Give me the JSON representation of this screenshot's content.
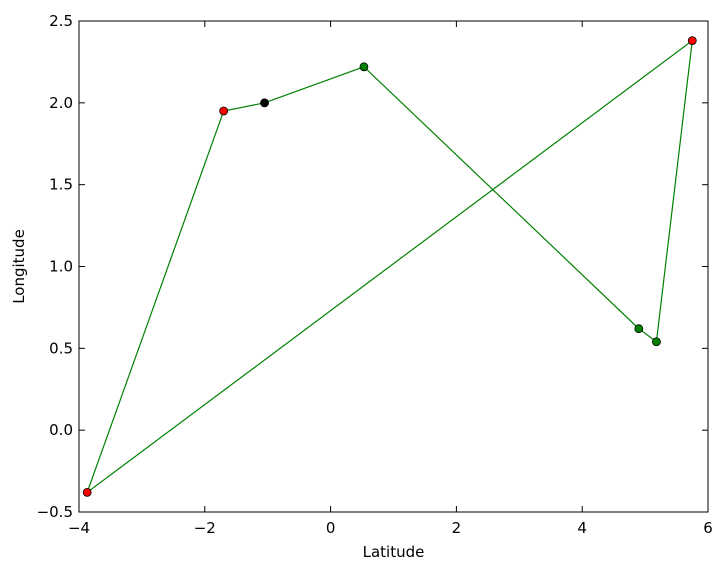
{
  "chart_data": {
    "type": "line",
    "xlabel": "Latitude",
    "ylabel": "Longitude",
    "xlim": [
      -4,
      6
    ],
    "ylim": [
      -0.5,
      2.5
    ],
    "xticks": [
      -4,
      -2,
      0,
      2,
      4,
      6
    ],
    "xtick_labels": [
      "−4",
      "−2",
      "0",
      "2",
      "4",
      "6"
    ],
    "yticks": [
      -0.5,
      0.0,
      0.5,
      1.0,
      1.5,
      2.0,
      2.5
    ],
    "ytick_labels": [
      "−0.5",
      "0.0",
      "0.5",
      "1.0",
      "1.5",
      "2.0",
      "2.5"
    ],
    "grid": false,
    "line_color": "#008000",
    "path": [
      {
        "x": -1.05,
        "y": 2.0
      },
      {
        "x": 0.53,
        "y": 2.22
      },
      {
        "x": 4.9,
        "y": 0.62
      },
      {
        "x": 5.18,
        "y": 0.54
      },
      {
        "x": 5.75,
        "y": 2.38
      },
      {
        "x": -3.87,
        "y": -0.38
      },
      {
        "x": -1.7,
        "y": 1.95
      },
      {
        "x": -1.05,
        "y": 2.0
      }
    ],
    "points": [
      {
        "x": -1.05,
        "y": 2.0,
        "color": "#000000"
      },
      {
        "x": 0.53,
        "y": 2.22,
        "color": "#008000"
      },
      {
        "x": 4.9,
        "y": 0.62,
        "color": "#008000"
      },
      {
        "x": 5.18,
        "y": 0.54,
        "color": "#008000"
      },
      {
        "x": 5.75,
        "y": 2.38,
        "color": "#ff0000"
      },
      {
        "x": -3.87,
        "y": -0.38,
        "color": "#ff0000"
      },
      {
        "x": -1.7,
        "y": 1.95,
        "color": "#ff0000"
      }
    ]
  }
}
